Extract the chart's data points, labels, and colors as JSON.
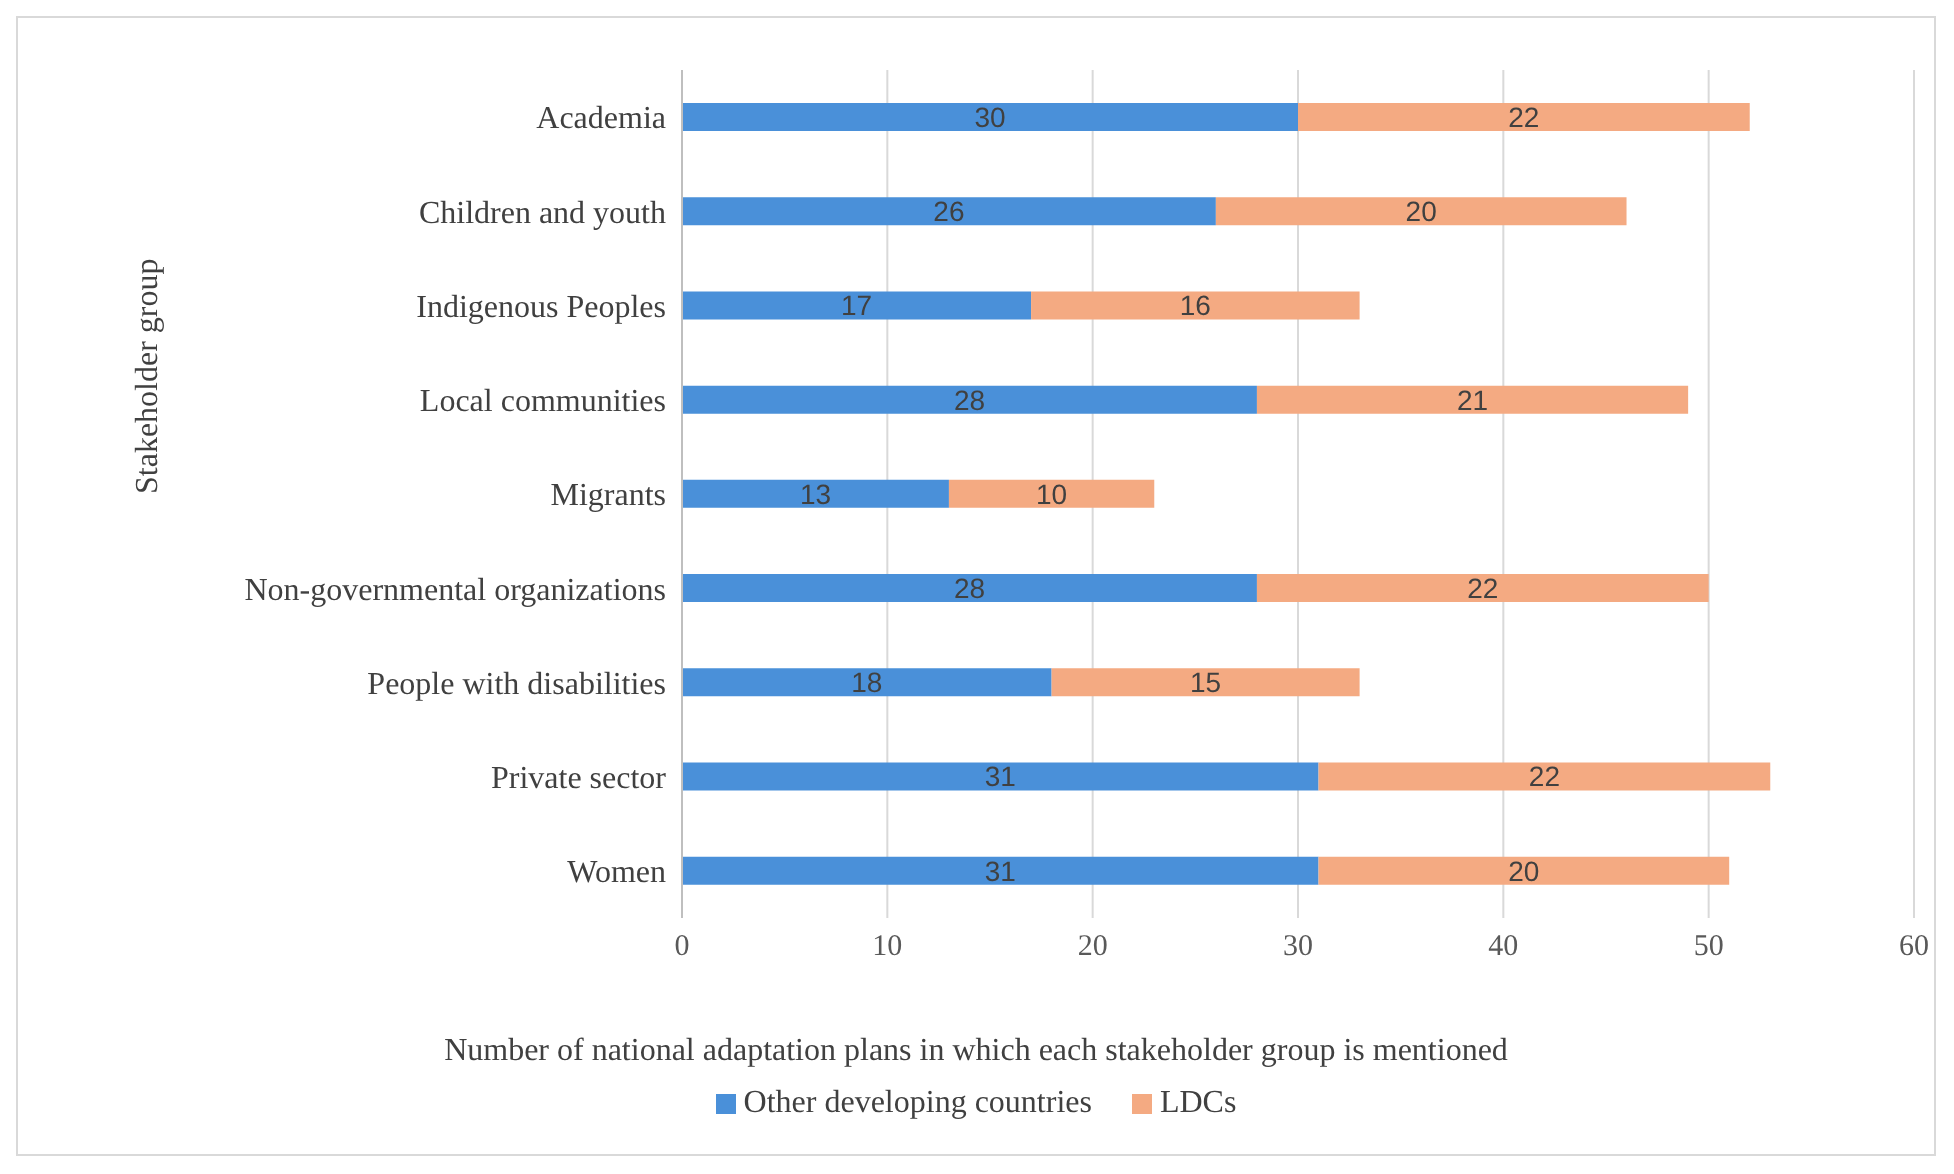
{
  "chart_data": {
    "type": "bar",
    "orientation": "horizontal",
    "stacked": true,
    "ylabel": "Stakeholder group",
    "xlabel": "Number of national adaptation plans in which each stakeholder group is mentioned",
    "categories": [
      "Academia",
      "Children and youth",
      "Indigenous Peoples",
      "Local communities",
      "Migrants",
      "Non-governmental organizations",
      "People with disabilities",
      "Private sector",
      "Women"
    ],
    "series": [
      {
        "name": "Other developing countries",
        "color": "#4a90d9",
        "values": [
          30,
          26,
          17,
          28,
          13,
          28,
          18,
          31,
          31
        ]
      },
      {
        "name": "LDCs",
        "color": "#f4aa82",
        "values": [
          22,
          20,
          16,
          21,
          10,
          22,
          15,
          22,
          20
        ]
      }
    ],
    "xlim": [
      0,
      60
    ],
    "xticks": [
      0,
      10,
      20,
      30,
      40,
      50,
      60
    ],
    "grid": "x",
    "legend": "bottom",
    "data_labels": true
  }
}
